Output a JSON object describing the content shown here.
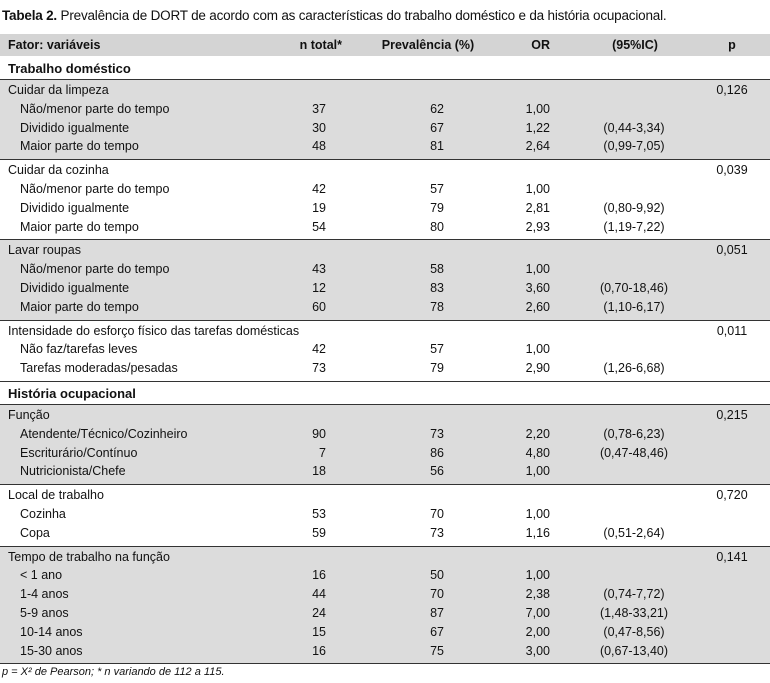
{
  "caption": {
    "label": "Tabela 2.",
    "text": " Prevalência de DORT de acordo com as características do trabalho doméstico e da história ocupacional."
  },
  "header": {
    "factor": "Fator: variáveis",
    "n": "n total*",
    "prev": "Prevalência (%)",
    "or": "OR",
    "ci": "(95%IC)",
    "p": "p"
  },
  "sections": [
    {
      "title": "Trabalho doméstico",
      "groups": [
        {
          "label": "Cuidar da limpeza",
          "p": "0,126",
          "rows": [
            {
              "label": "Não/menor parte do tempo",
              "n": "37",
              "prev": "62",
              "or": "1,00",
              "ci": ""
            },
            {
              "label": "Dividido igualmente",
              "n": "30",
              "prev": "67",
              "or": "1,22",
              "ci": "(0,44-3,34)"
            },
            {
              "label": "Maior parte do tempo",
              "n": "48",
              "prev": "81",
              "or": "2,64",
              "ci": "(0,99-7,05)"
            }
          ]
        },
        {
          "label": "Cuidar da cozinha",
          "p": "0,039",
          "rows": [
            {
              "label": "Não/menor parte do tempo",
              "n": "42",
              "prev": "57",
              "or": "1,00",
              "ci": ""
            },
            {
              "label": "Dividido igualmente",
              "n": "19",
              "prev": "79",
              "or": "2,81",
              "ci": "(0,80-9,92)"
            },
            {
              "label": "Maior parte do tempo",
              "n": "54",
              "prev": "80",
              "or": "2,93",
              "ci": "(1,19-7,22)"
            }
          ]
        },
        {
          "label": "Lavar roupas",
          "p": "0,051",
          "rows": [
            {
              "label": "Não/menor parte do tempo",
              "n": "43",
              "prev": "58",
              "or": "1,00",
              "ci": ""
            },
            {
              "label": "Dividido igualmente",
              "n": "12",
              "prev": "83",
              "or": "3,60",
              "ci": "(0,70-18,46)"
            },
            {
              "label": "Maior parte do tempo",
              "n": "60",
              "prev": "78",
              "or": "2,60",
              "ci": "(1,10-6,17)"
            }
          ]
        },
        {
          "label": "Intensidade do esforço físico das tarefas domésticas",
          "p": "0,011",
          "rows": [
            {
              "label": "Não faz/tarefas leves",
              "n": "42",
              "prev": "57",
              "or": "1,00",
              "ci": ""
            },
            {
              "label": "Tarefas moderadas/pesadas",
              "n": "73",
              "prev": "79",
              "or": "2,90",
              "ci": "(1,26-6,68)"
            }
          ]
        }
      ]
    },
    {
      "title": "História ocupacional",
      "groups": [
        {
          "label": "Função",
          "p": "0,215",
          "rows": [
            {
              "label": "Atendente/Técnico/Cozinheiro",
              "n": "90",
              "prev": "73",
              "or": "2,20",
              "ci": "(0,78-6,23)"
            },
            {
              "label": "Escriturário/Contínuo",
              "n": "7",
              "prev": "86",
              "or": "4,80",
              "ci": "(0,47-48,46)"
            },
            {
              "label": "Nutricionista/Chefe",
              "n": "18",
              "prev": "56",
              "or": "1,00",
              "ci": ""
            }
          ]
        },
        {
          "label": "Local de trabalho",
          "p": "0,720",
          "rows": [
            {
              "label": "Cozinha",
              "n": "53",
              "prev": "70",
              "or": "1,00",
              "ci": ""
            },
            {
              "label": "Copa",
              "n": "59",
              "prev": "73",
              "or": "1,16",
              "ci": "(0,51-2,64)"
            }
          ]
        },
        {
          "label": "Tempo de trabalho na função",
          "p": "0,141",
          "rows": [
            {
              "label": "< 1 ano",
              "n": "16",
              "prev": "50",
              "or": "1,00",
              "ci": ""
            },
            {
              "label": "1-4 anos",
              "n": "44",
              "prev": "70",
              "or": "2,38",
              "ci": "(0,74-7,72)"
            },
            {
              "label": "5-9 anos",
              "n": "24",
              "prev": "87",
              "or": "7,00",
              "ci": "(1,48-33,21)"
            },
            {
              "label": "10-14 anos",
              "n": "15",
              "prev": "67",
              "or": "2,00",
              "ci": "(0,47-8,56)"
            },
            {
              "label": "15-30 anos",
              "n": "16",
              "prev": "75",
              "or": "3,00",
              "ci": "(0,67-13,40)"
            }
          ]
        }
      ]
    }
  ],
  "footnote": "p = X² de Pearson; * n variando de 112 a 115."
}
